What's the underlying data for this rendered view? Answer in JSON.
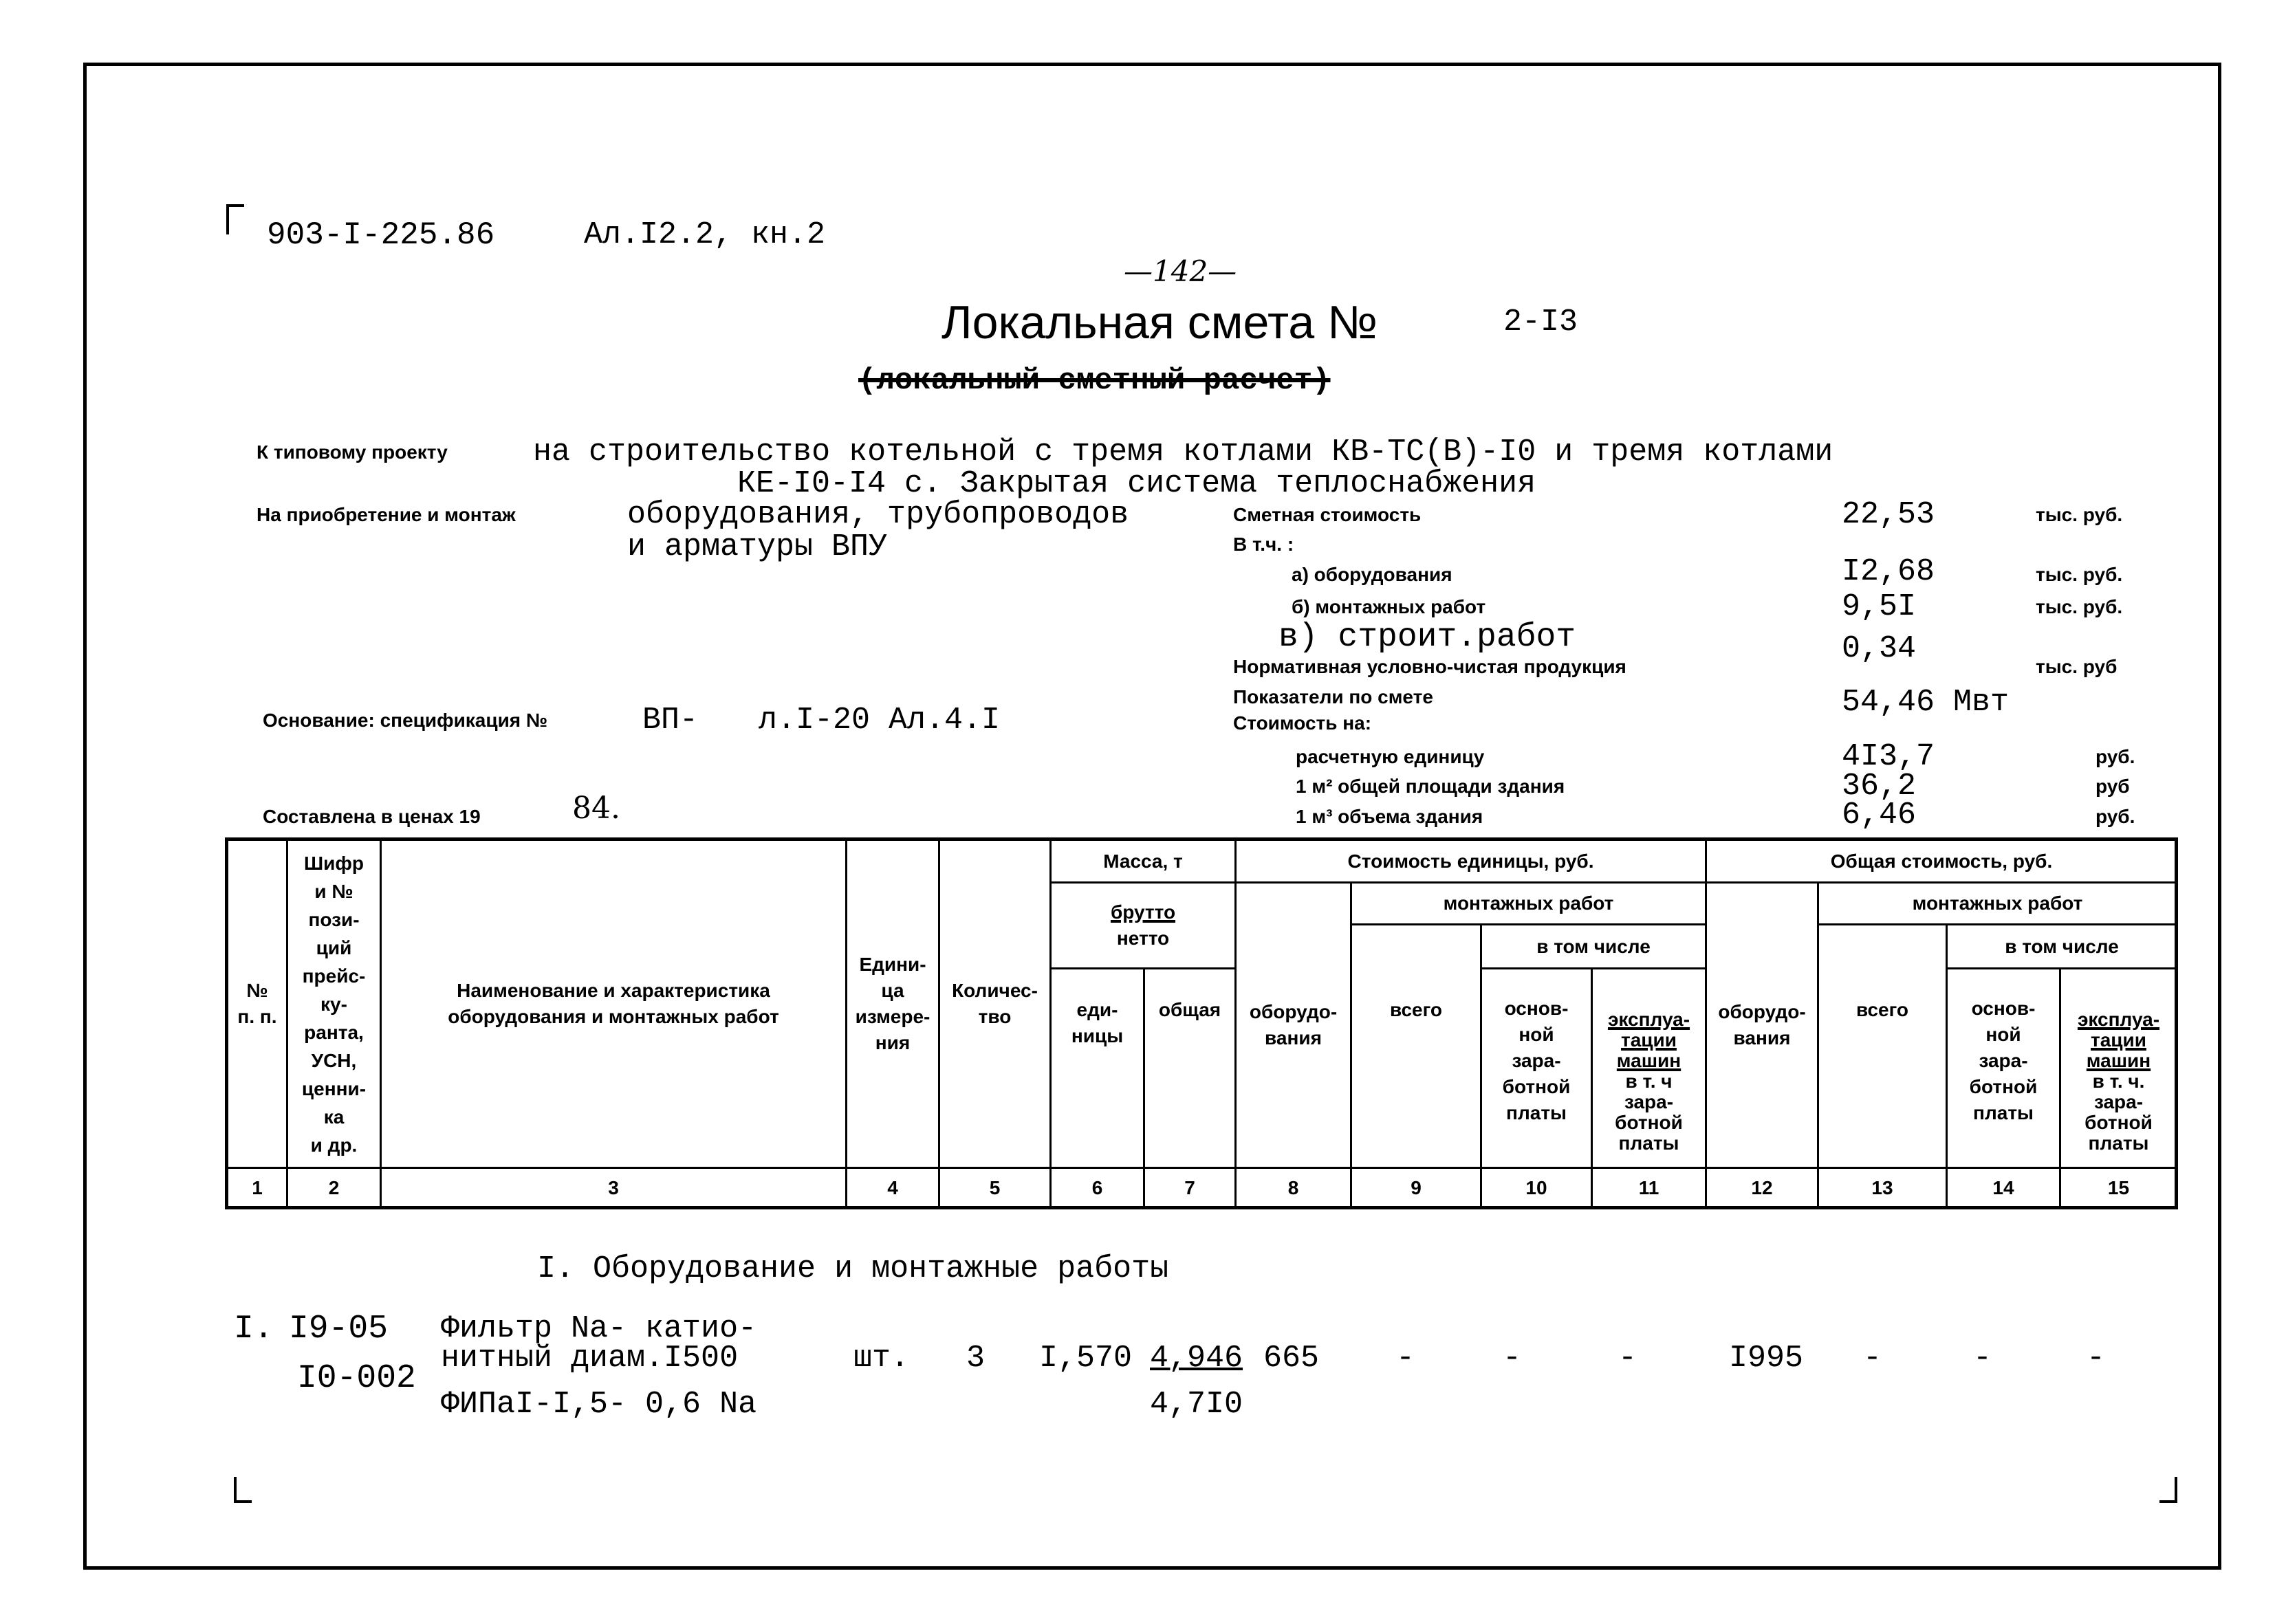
{
  "header": {
    "doc_code": "903-I-225.86",
    "album": "Ал.I2.2, кн.2",
    "page_number": "—142—",
    "title": "Локальная смета №",
    "estimate_number": "2-I3",
    "subtitle_struck": "(локальный сметный расчет)"
  },
  "project": {
    "label": "К типовому проекту",
    "line1": "на строительство котельной с тремя котлами КВ-ТС(В)-I0 и тремя котлами",
    "line2": "КЕ-I0-I4 с. Закрытая система теплоснабжения"
  },
  "purpose": {
    "label": "На приобретение и монтаж",
    "line1": "оборудования, трубопроводов",
    "line2": "и арматуры ВПУ"
  },
  "basis": {
    "label": "Основание: спецификация №",
    "spec": "ВП-",
    "sheets": "л.I-20 Ал.4.I"
  },
  "prices": {
    "label": "Составлена в ценах 19",
    "year": "84."
  },
  "summary": {
    "estimated_cost": {
      "label": "Сметная стоимость",
      "value": "22,53",
      "unit": "тыс. руб."
    },
    "including_label": "В т.ч. :",
    "equipment": {
      "label": "а) оборудования",
      "value": "I2,68",
      "unit": "тыс. руб."
    },
    "installation": {
      "label": "б) монтажных работ",
      "value": "9,5I",
      "unit": "тыс. руб."
    },
    "construction": {
      "label": "в) строит.работ",
      "value": "0,34"
    },
    "net_production": {
      "label": "Нормативная условно-чистая продукция",
      "unit": "тыс. руб"
    },
    "indicators": {
      "label": "Показатели по смете",
      "value": "54,46 Мвт"
    },
    "cost_per_label": "Стоимость на:",
    "per_unit": {
      "label": "расчетную единицу",
      "value": "4I3,7",
      "unit": "руб."
    },
    "per_m2": {
      "label": "1 м² общей площади здания",
      "value": "36,2",
      "unit": "руб"
    },
    "per_m3": {
      "label": "1 м³ объема здания",
      "value": "6,46",
      "unit": "руб."
    }
  },
  "table": {
    "h_num": "№\nп. п.",
    "h_code": "Шифр\nи №\nпози-\nций\nпрейс-\nку-\nранта,\nУСН,\nценни-\nка\nи др.",
    "h_name": "Наименование и характеристика\nоборудования и монтажных работ",
    "h_unit": "Едини-\nца\nизмере-\nния",
    "h_qty": "Количес-\nтво",
    "h_mass": "Масса, т",
    "h_gross": "брутто",
    "h_net": "нетто",
    "h_mass_unit": "еди-\nницы",
    "h_mass_total": "общая",
    "h_unit_cost": "Стоимость единицы, руб.",
    "h_total_cost": "Общая стоимость, руб.",
    "h_equipment": "оборудо-\nвания",
    "h_install": "монтажных работ",
    "h_all": "всего",
    "h_incl": "в том числе",
    "h_wage": "основ-\nной\nзара-\nботной\nплаты",
    "h_machines": "эксплуа-\nтации\nмашин",
    "h_machines_wage": "в т. ч\nзара-\nботной\nплаты",
    "h_machines_wage2": "в т. ч.\nзара-\nботной\nплаты",
    "col_numbers": [
      "1",
      "2",
      "3",
      "4",
      "5",
      "6",
      "7",
      "8",
      "9",
      "10",
      "11",
      "12",
      "13",
      "14",
      "15"
    ]
  },
  "section_title": "I. Оборудование и монтажные работы",
  "rows": [
    {
      "num": "I.",
      "code1": "I9-05",
      "code2": "I0-002",
      "name1": "Фильтр Na- катио-",
      "name2": "нитный диам.I500",
      "name3": "ФИПаI-I,5- 0,6 Na",
      "unit": "шт.",
      "qty": "3",
      "mass_unit": "I,570",
      "mass_total_gross": "4,946",
      "mass_total_net": "4,7I0",
      "unit_equipment": "665",
      "unit_install_all": "-",
      "unit_wage": "-",
      "unit_machines": "-",
      "total_equipment": "I995",
      "total_install_all": "-",
      "total_wage": "-",
      "total_machines": "-"
    }
  ]
}
